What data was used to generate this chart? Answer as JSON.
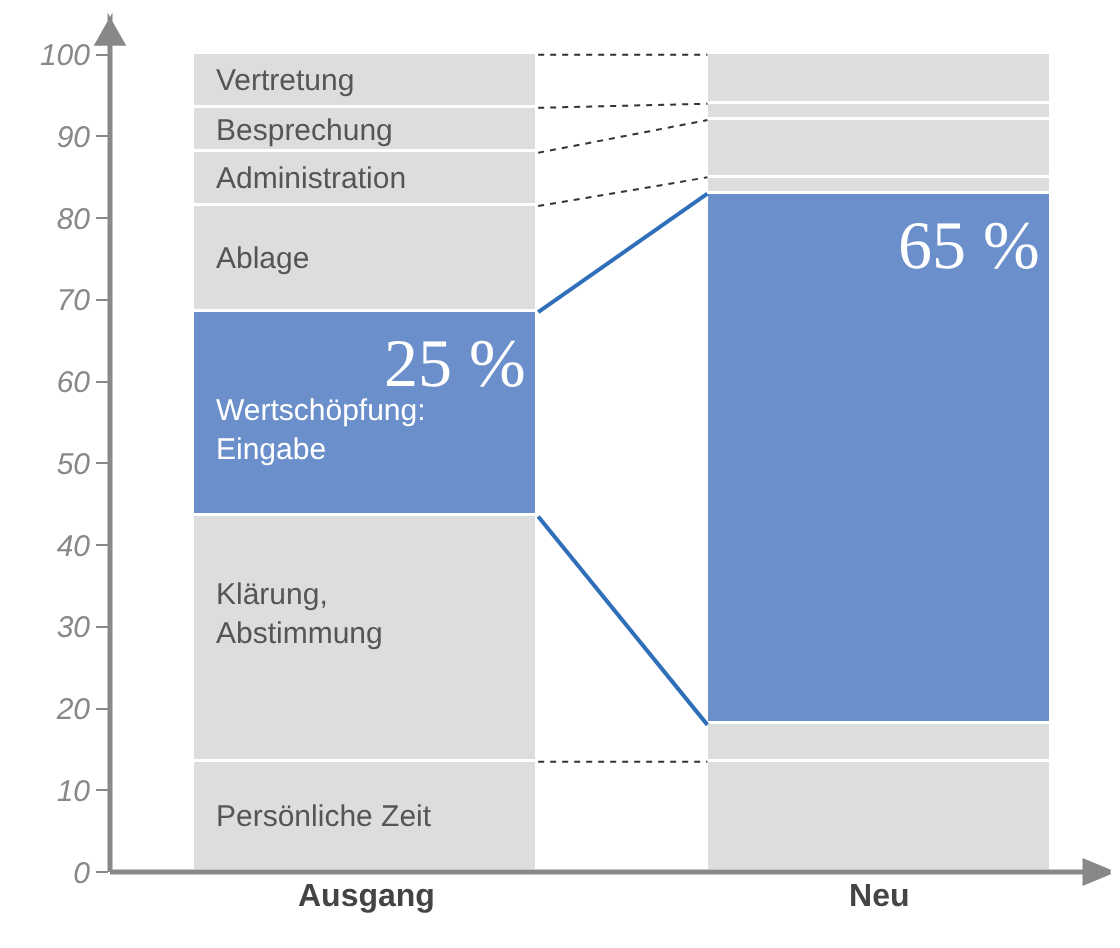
{
  "chart_data": {
    "type": "bar",
    "stacked": true,
    "categories": [
      "Ausgang",
      "Neu"
    ],
    "series": [
      {
        "name": "Persönliche Zeit",
        "color": "#dcdddf",
        "values": [
          13.5,
          13.5
        ]
      },
      {
        "name": "Klärung,\nAbstimmung",
        "color": "#dcdddf",
        "values": [
          30,
          4.5
        ]
      },
      {
        "name": "Wertschöpfung:\nEingabe",
        "color": "#6a8fcb",
        "values": [
          25,
          65
        ],
        "value_labels": [
          "25 %",
          "65 %"
        ]
      },
      {
        "name": "Ablage",
        "color": "#dcdddf",
        "values": [
          13,
          2
        ]
      },
      {
        "name": "Administration",
        "color": "#dcdddf",
        "values": [
          6.5,
          7
        ]
      },
      {
        "name": "Besprechung",
        "color": "#dcdddf",
        "values": [
          5.5,
          2
        ]
      },
      {
        "name": "Vertretung",
        "color": "#dcdddf",
        "values": [
          6.5,
          6
        ]
      }
    ],
    "ylim": [
      0,
      104
    ],
    "yticks": [
      0,
      10,
      20,
      30,
      40,
      50,
      60,
      70,
      80,
      90,
      100
    ],
    "legend": false
  }
}
